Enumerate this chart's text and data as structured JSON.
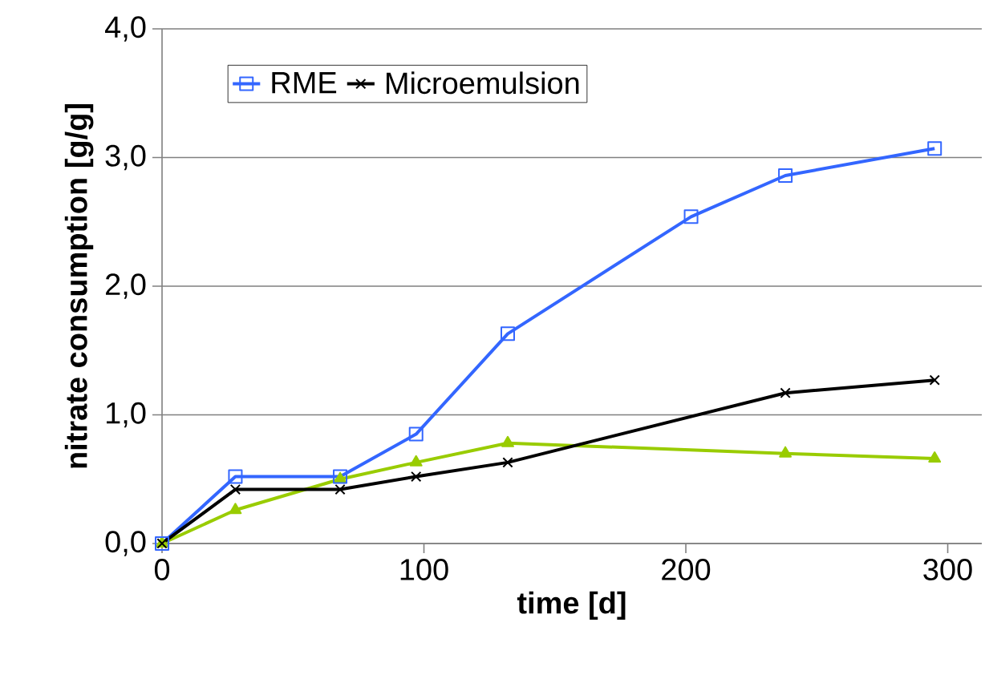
{
  "chart_data": {
    "type": "line",
    "xlabel": "time [d]",
    "ylabel": "nitrate consumption [g/g]",
    "xlim": [
      0,
      313
    ],
    "xticks": [
      0,
      100,
      200,
      300
    ],
    "ylim": [
      0,
      4
    ],
    "yticks": [
      {
        "value": 0,
        "label": "0,0"
      },
      {
        "value": 1,
        "label": "1,0"
      },
      {
        "value": 2,
        "label": "2,0"
      },
      {
        "value": 3,
        "label": "3,0"
      },
      {
        "value": 4,
        "label": "4,0"
      }
    ],
    "grid": "y",
    "legend": "top left",
    "series": [
      {
        "color": "#99cc00",
        "marker": "triangle",
        "x": [
          0,
          28,
          68,
          97,
          132,
          238,
          295
        ],
        "values": [
          0,
          0.26,
          0.5,
          0.63,
          0.78,
          0.7,
          0.66
        ]
      },
      {
        "name": "RME",
        "color": "#3366ff",
        "marker": "square",
        "x": [
          0,
          28,
          68,
          97,
          132,
          202,
          238,
          295
        ],
        "values": [
          0,
          0.52,
          0.52,
          0.85,
          1.63,
          2.54,
          2.86,
          3.07
        ]
      },
      {
        "name": "Microemulsion",
        "color": "#000000",
        "marker": "cross",
        "x": [
          0,
          28,
          68,
          97,
          132,
          238,
          295
        ],
        "values": [
          0,
          0.42,
          0.42,
          0.52,
          0.63,
          1.17,
          1.27
        ]
      }
    ]
  }
}
